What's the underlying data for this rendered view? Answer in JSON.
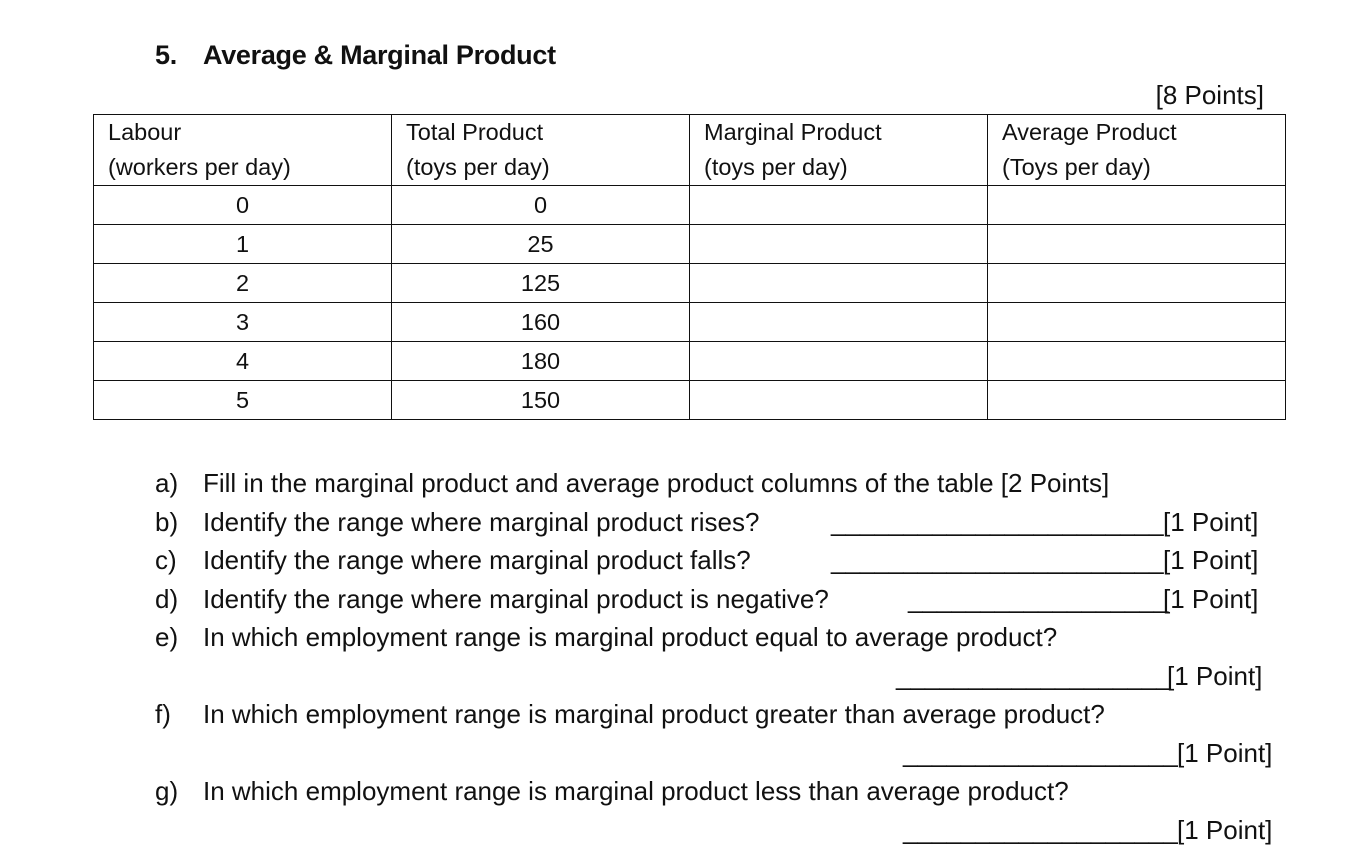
{
  "section": {
    "number": "5.",
    "title": "Average & Marginal Product",
    "total_points": "[8 Points]"
  },
  "table": {
    "headers": [
      [
        "Labour",
        "(workers per day)"
      ],
      [
        "Total Product",
        "(toys per day)"
      ],
      [
        "Marginal Product",
        "(toys per day)"
      ],
      [
        "Average Product",
        "(Toys per day)"
      ]
    ],
    "rows": [
      [
        "0",
        "0",
        "",
        ""
      ],
      [
        "1",
        "25",
        "",
        ""
      ],
      [
        "2",
        "125",
        "",
        ""
      ],
      [
        "3",
        "160",
        "",
        ""
      ],
      [
        "4",
        "180",
        "",
        ""
      ],
      [
        "5",
        "150",
        "",
        ""
      ]
    ]
  },
  "questions": [
    {
      "letter": "a)",
      "text": "Fill in the marginal product and average product columns of the table [2 Points]",
      "blank": "",
      "points": ""
    },
    {
      "letter": "b)",
      "text": "Identify the range where marginal product rises?",
      "blank": "_______________________",
      "points": "[1 Point]"
    },
    {
      "letter": "c)",
      "text": "Identify the range where marginal product falls?",
      "blank": "_______________________",
      "points": "[1 Point]"
    },
    {
      "letter": "d)",
      "text": "Identify the range where marginal product is negative?",
      "blank": "__________________",
      "points": "[1 Point]"
    },
    {
      "letter": "e)",
      "text": "In which employment range is marginal product equal to average product?",
      "blank": "",
      "points": ""
    },
    {
      "letter": "",
      "text": "",
      "blank": "___________________",
      "points": "[1 Point]"
    },
    {
      "letter": "f)",
      "text": "In which employment range is marginal product greater than average product?",
      "blank": "",
      "points": ""
    },
    {
      "letter": "",
      "text": "",
      "blank": "___________________",
      "points": "[1 Point]"
    },
    {
      "letter": "g)",
      "text": "In which employment range is marginal product less than average product?",
      "blank": "",
      "points": ""
    },
    {
      "letter": "",
      "text": "",
      "blank": "___________________",
      "points": "[1 Point]"
    }
  ]
}
